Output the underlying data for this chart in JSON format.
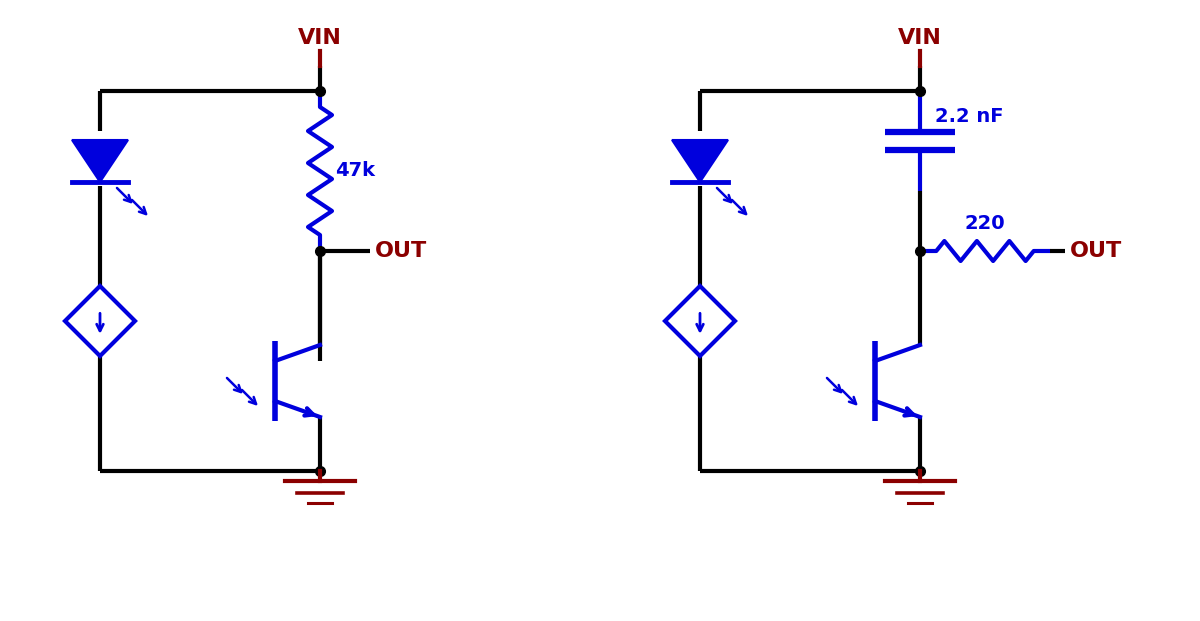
{
  "bg_color": "#ffffff",
  "blue": "#0000dd",
  "dark_red": "#8b0000",
  "black": "#000000",
  "line_width": 3.0,
  "circuit1": {
    "vin_label": "VIN",
    "out_label": "OUT",
    "resistor_label": "47k"
  },
  "circuit2": {
    "vin_label": "VIN",
    "out_label": "OUT",
    "cap_label": "2.2 nF",
    "resistor_label": "220"
  }
}
